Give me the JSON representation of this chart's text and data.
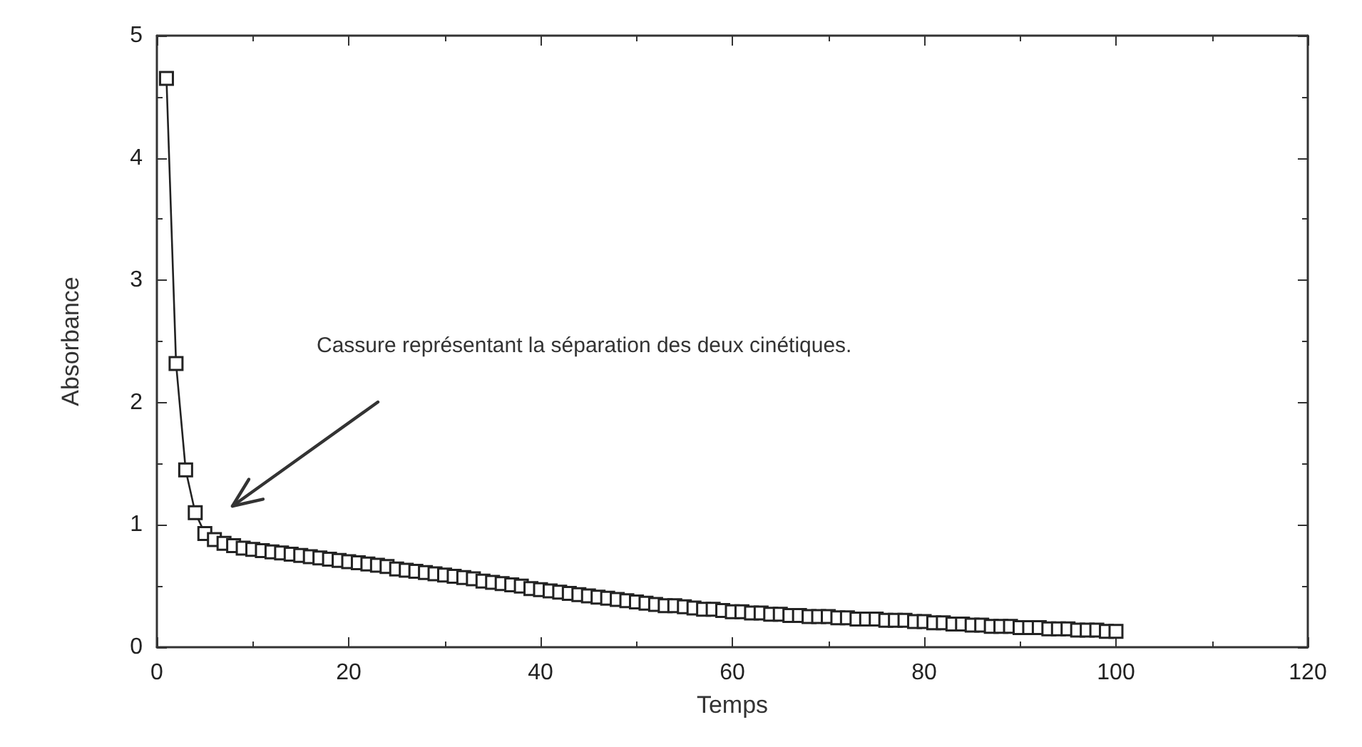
{
  "chart_data": {
    "type": "line",
    "xlabel": "Temps",
    "ylabel": "Absorbance",
    "x": [
      1,
      2,
      3,
      4,
      5,
      6,
      7,
      8,
      9,
      10,
      11,
      12,
      13,
      14,
      15,
      16,
      17,
      18,
      19,
      20,
      21,
      22,
      23,
      24,
      25,
      26,
      27,
      28,
      29,
      30,
      31,
      32,
      33,
      34,
      35,
      36,
      37,
      38,
      39,
      40,
      41,
      42,
      43,
      44,
      45,
      46,
      47,
      48,
      49,
      50,
      51,
      52,
      53,
      54,
      55,
      56,
      57,
      58,
      59,
      60,
      61,
      62,
      63,
      64,
      65,
      66,
      67,
      68,
      69,
      70,
      71,
      72,
      73,
      74,
      75,
      76,
      77,
      78,
      79,
      80,
      81,
      82,
      83,
      84,
      85,
      86,
      87,
      88,
      89,
      90,
      91,
      92,
      93,
      94,
      95,
      96,
      97,
      98,
      99,
      100
    ],
    "series": [
      {
        "color": "#222222",
        "values": [
          4.65,
          2.32,
          1.45,
          1.1,
          0.93,
          0.88,
          0.85,
          0.83,
          0.81,
          0.8,
          0.79,
          0.78,
          0.77,
          0.76,
          0.75,
          0.74,
          0.73,
          0.72,
          0.71,
          0.7,
          0.69,
          0.68,
          0.67,
          0.66,
          0.64,
          0.63,
          0.62,
          0.61,
          0.6,
          0.59,
          0.58,
          0.57,
          0.56,
          0.54,
          0.53,
          0.52,
          0.51,
          0.5,
          0.48,
          0.47,
          0.46,
          0.45,
          0.44,
          0.43,
          0.42,
          0.41,
          0.4,
          0.39,
          0.38,
          0.37,
          0.36,
          0.35,
          0.34,
          0.34,
          0.33,
          0.32,
          0.31,
          0.31,
          0.3,
          0.29,
          0.29,
          0.28,
          0.28,
          0.27,
          0.27,
          0.26,
          0.26,
          0.25,
          0.25,
          0.25,
          0.24,
          0.24,
          0.23,
          0.23,
          0.23,
          0.22,
          0.22,
          0.22,
          0.21,
          0.21,
          0.2,
          0.2,
          0.19,
          0.19,
          0.18,
          0.18,
          0.17,
          0.17,
          0.17,
          0.16,
          0.16,
          0.16,
          0.15,
          0.15,
          0.15,
          0.14,
          0.14,
          0.14,
          0.13,
          0.13
        ]
      }
    ],
    "xlim": [
      0,
      120
    ],
    "xticks": [
      0,
      20,
      40,
      60,
      80,
      100,
      120
    ],
    "ylim": [
      0,
      5
    ],
    "yticks": [
      0,
      1,
      2,
      3,
      4,
      5
    ],
    "grid": false,
    "marker": "square",
    "line_style": "solid",
    "annotations": [
      "Cassure représentant la séparation des deux cinétiques."
    ]
  }
}
